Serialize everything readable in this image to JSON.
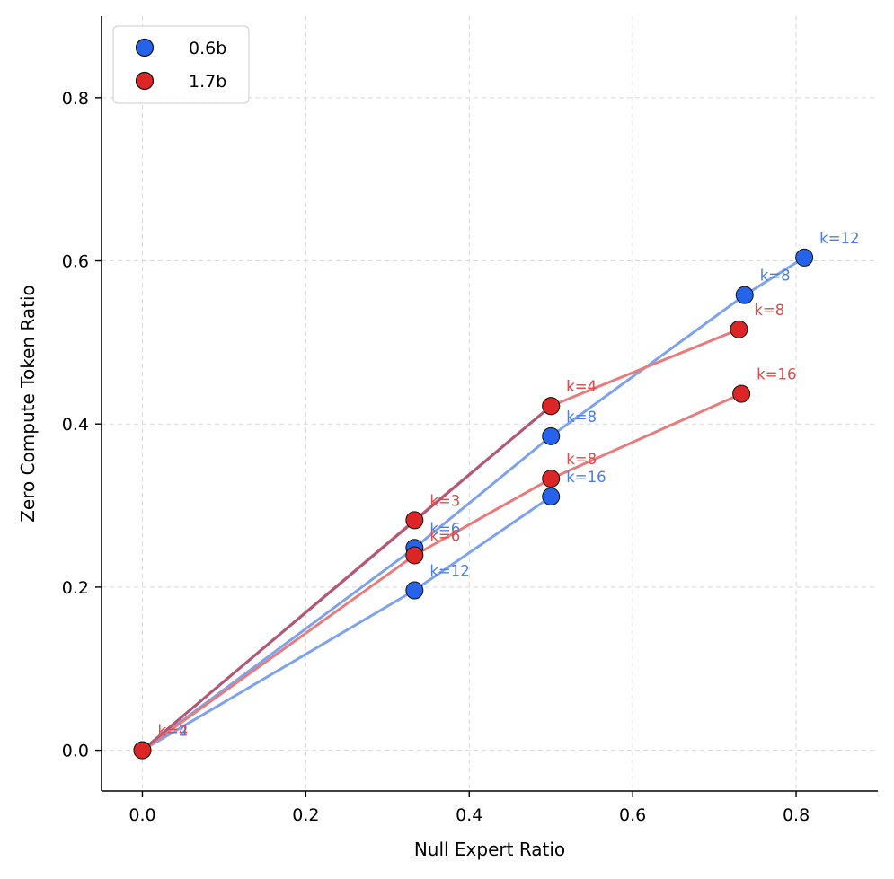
{
  "chart_data": {
    "type": "scatter",
    "xlabel": "Null Expert Ratio",
    "ylabel": "Zero Compute Token Ratio",
    "xlim": [
      -0.05,
      0.9
    ],
    "ylim": [
      -0.05,
      0.9
    ],
    "xticks": [
      0.0,
      0.2,
      0.4,
      0.6,
      0.8
    ],
    "yticks": [
      0.0,
      0.2,
      0.4,
      0.6,
      0.8
    ],
    "xtick_labels": [
      "0.0",
      "0.2",
      "0.4",
      "0.6",
      "0.8"
    ],
    "ytick_labels": [
      "0.0",
      "0.2",
      "0.4",
      "0.6",
      "0.8"
    ],
    "grid": true,
    "legend_position": "top-left",
    "series": [
      {
        "name": "0.6b",
        "color": "#2563eb",
        "line_color": "#7ea3ec",
        "label_color": "#4a7ee6",
        "lines": [
          {
            "points": [
              [
                0.0,
                0.0
              ],
              [
                0.333,
                0.248
              ],
              [
                0.5,
                0.385
              ],
              [
                0.737,
                0.558
              ],
              [
                0.81,
                0.604
              ]
            ]
          },
          {
            "points": [
              [
                0.0,
                0.0
              ],
              [
                0.333,
                0.196
              ],
              [
                0.5,
                0.311
              ]
            ]
          }
        ],
        "points": [
          {
            "x": 0.0,
            "y": 0.0,
            "label": "k=2"
          },
          {
            "x": 0.333,
            "y": 0.248,
            "label": "k=6"
          },
          {
            "x": 0.333,
            "y": 0.196,
            "label": "k=12"
          },
          {
            "x": 0.5,
            "y": 0.422,
            "label": "k=4"
          },
          {
            "x": 0.5,
            "y": 0.385,
            "label": "k=8"
          },
          {
            "x": 0.5,
            "y": 0.311,
            "label": "k=16"
          },
          {
            "x": 0.737,
            "y": 0.558,
            "label": "k=8"
          },
          {
            "x": 0.81,
            "y": 0.604,
            "label": "k=12"
          }
        ]
      },
      {
        "name": "1.7b",
        "color": "#dc2626",
        "line_color": "#e87c7c",
        "label_color": "#dc4c4c",
        "lines": [
          {
            "points": [
              [
                0.0,
                0.0
              ],
              [
                0.333,
                0.282
              ],
              [
                0.5,
                0.422
              ],
              [
                0.73,
                0.516
              ]
            ]
          },
          {
            "points": [
              [
                0.0,
                0.0
              ],
              [
                0.333,
                0.239
              ],
              [
                0.5,
                0.333
              ],
              [
                0.733,
                0.437
              ]
            ]
          }
        ],
        "points": [
          {
            "x": 0.0,
            "y": 0.0,
            "label": "k=4"
          },
          {
            "x": 0.333,
            "y": 0.282,
            "label": "k=3"
          },
          {
            "x": 0.333,
            "y": 0.239,
            "label": "k=6"
          },
          {
            "x": 0.5,
            "y": 0.422,
            "label": "k=4"
          },
          {
            "x": 0.5,
            "y": 0.333,
            "label": "k=8"
          },
          {
            "x": 0.73,
            "y": 0.516,
            "label": "k=8"
          },
          {
            "x": 0.733,
            "y": 0.437,
            "label": "k=16"
          }
        ]
      }
    ],
    "overlap_lines": [
      {
        "points": [
          [
            0.0,
            0.0
          ],
          [
            0.5,
            0.422
          ]
        ],
        "color": "#ad5a7a"
      }
    ]
  }
}
